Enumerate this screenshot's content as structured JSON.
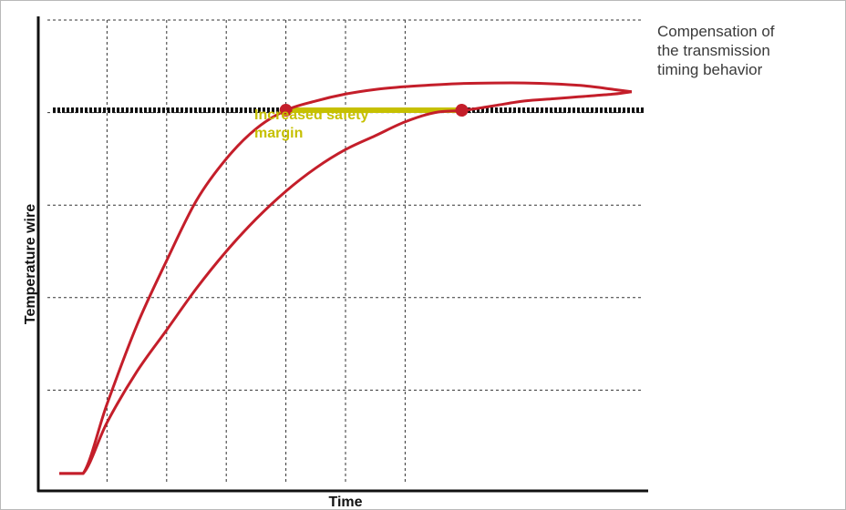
{
  "caption": [
    "Compensation of",
    "the transmission",
    "timing behavior"
  ],
  "colors": {
    "curve": "#c41e2a",
    "margin": "#c6c000",
    "threshold": "#111111",
    "grid": "#333333",
    "axis": "#111111"
  },
  "chart_data": {
    "type": "line",
    "xlabel": "Time",
    "ylabel": "Temperature wire",
    "xlim": [
      0,
      10
    ],
    "ylim": [
      0,
      10
    ],
    "grid": true,
    "threshold": 8.05,
    "series": [
      {
        "x": [
          0.2,
          0.6,
          1.0,
          1.5,
          2.0,
          2.5,
          3.0,
          3.5,
          4.0,
          4.5,
          5.0,
          5.5,
          6.0,
          6.5,
          7.0,
          7.5,
          8.0,
          8.5,
          9.0,
          9.5,
          9.8
        ],
        "y": [
          0.2,
          0.2,
          1.7,
          3.4,
          4.8,
          6.1,
          7.0,
          7.65,
          8.05,
          8.25,
          8.4,
          8.5,
          8.56,
          8.6,
          8.63,
          8.64,
          8.64,
          8.62,
          8.58,
          8.5,
          8.45
        ]
      },
      {
        "x": [
          0.2,
          0.6,
          1.0,
          1.5,
          2.0,
          2.5,
          3.0,
          3.5,
          4.0,
          4.5,
          5.0,
          5.5,
          6.0,
          6.5,
          7.0,
          7.5,
          8.0,
          8.5,
          9.0,
          9.5,
          9.8
        ],
        "y": [
          0.2,
          0.2,
          1.3,
          2.4,
          3.3,
          4.2,
          5.0,
          5.7,
          6.3,
          6.8,
          7.2,
          7.5,
          7.8,
          8.0,
          8.05,
          8.15,
          8.25,
          8.3,
          8.35,
          8.4,
          8.45
        ]
      }
    ],
    "margin": {
      "label": [
        "Increased safety",
        "margin"
      ],
      "x_start": 4.0,
      "x_end": 6.95
    }
  }
}
